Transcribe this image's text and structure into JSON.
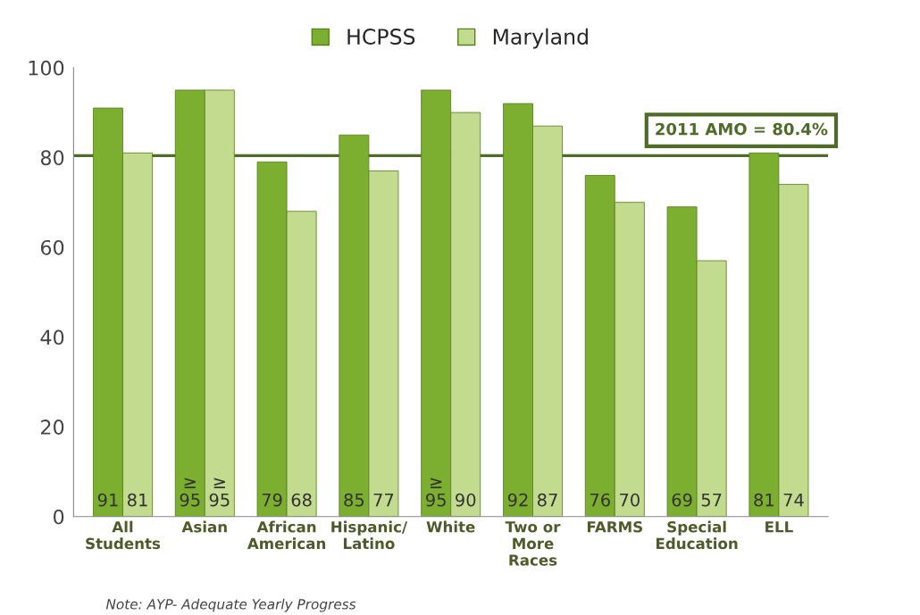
{
  "chart_data": {
    "type": "bar",
    "categories": [
      "All\nStudents",
      "Asian",
      "African\nAmerican",
      "Hispanic/\nLatino",
      "White",
      "Two or\nMore\nRaces",
      "FARMS",
      "Special\nEducation",
      "ELL"
    ],
    "series": [
      {
        "name": "HCPSS",
        "color": "#7cae2f",
        "values": [
          91,
          95,
          79,
          85,
          95,
          92,
          76,
          69,
          81
        ],
        "value_labels": [
          "91",
          "≥\n95",
          "79",
          "85",
          "≥\n95",
          "92",
          "76",
          "69",
          "81"
        ]
      },
      {
        "name": "Maryland",
        "color": "#c2db8e",
        "values": [
          81,
          95,
          68,
          77,
          90,
          87,
          70,
          57,
          74
        ],
        "value_labels": [
          "81",
          "≥\n95",
          "68",
          "77",
          "90",
          "87",
          "70",
          "57",
          "74"
        ]
      }
    ],
    "ylim": [
      0,
      100
    ],
    "yticks": [
      0,
      20,
      40,
      60,
      80,
      100
    ],
    "grid": false,
    "legend": "top",
    "ref_lines": [
      {
        "axis": "y",
        "value": 80.4,
        "label": "2011 AMO = 80.4%",
        "color": "#4e6b2a"
      }
    ],
    "annotations": [
      "Note: AYP- Adequate Yearly Progress"
    ]
  }
}
